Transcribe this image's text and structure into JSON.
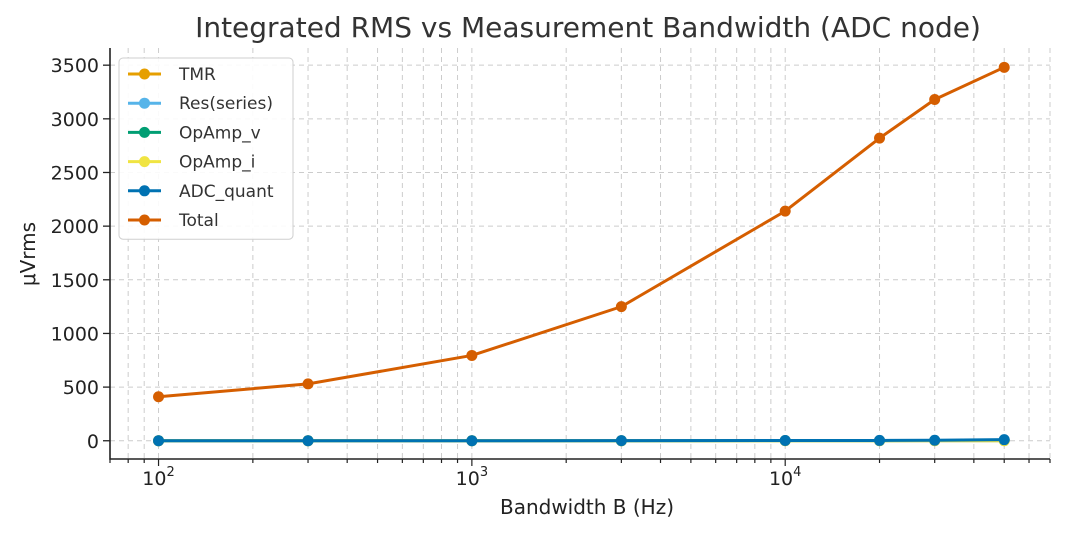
{
  "chart_data": {
    "type": "line",
    "title": "Integrated RMS vs Measurement Bandwidth (ADC node)",
    "xlabel": "Bandwidth B (Hz)",
    "ylabel": "μVrms",
    "xscale": "log",
    "xlim": [
      70,
      70000
    ],
    "ylim": [
      -170,
      3660
    ],
    "yticks": [
      0,
      500,
      1000,
      1500,
      2000,
      2500,
      3000,
      3500
    ],
    "xticks": [
      {
        "value": 100,
        "base": "10",
        "exp": "2"
      },
      {
        "value": 1000,
        "base": "10",
        "exp": "3"
      },
      {
        "value": 10000,
        "base": "10",
        "exp": "4"
      }
    ],
    "grid": true,
    "legend_position": "top-left",
    "x": [
      100,
      300,
      1000,
      3000,
      10000,
      20000,
      30000,
      50000
    ],
    "series": [
      {
        "name": "TMR",
        "color": "#E69F00",
        "values": [
          0,
          0,
          0,
          0,
          1,
          1,
          1,
          1
        ]
      },
      {
        "name": "Res(series)",
        "color": "#56B4E9",
        "values": [
          0,
          0,
          0,
          0,
          1,
          1,
          1,
          1
        ]
      },
      {
        "name": "OpAmp_v",
        "color": "#009E73",
        "values": [
          0,
          0,
          0,
          0,
          1,
          1,
          2,
          3
        ]
      },
      {
        "name": "OpAmp_i",
        "color": "#F0E442",
        "values": [
          0,
          0,
          0,
          0,
          0,
          0,
          0,
          0
        ]
      },
      {
        "name": "ADC_quant",
        "color": "#0072B2",
        "values": [
          0,
          0,
          0,
          1,
          2,
          3,
          5,
          10
        ]
      },
      {
        "name": "Total",
        "color": "#D55E00",
        "values": [
          410,
          530,
          795,
          1250,
          2140,
          2820,
          3180,
          3480
        ]
      }
    ]
  }
}
